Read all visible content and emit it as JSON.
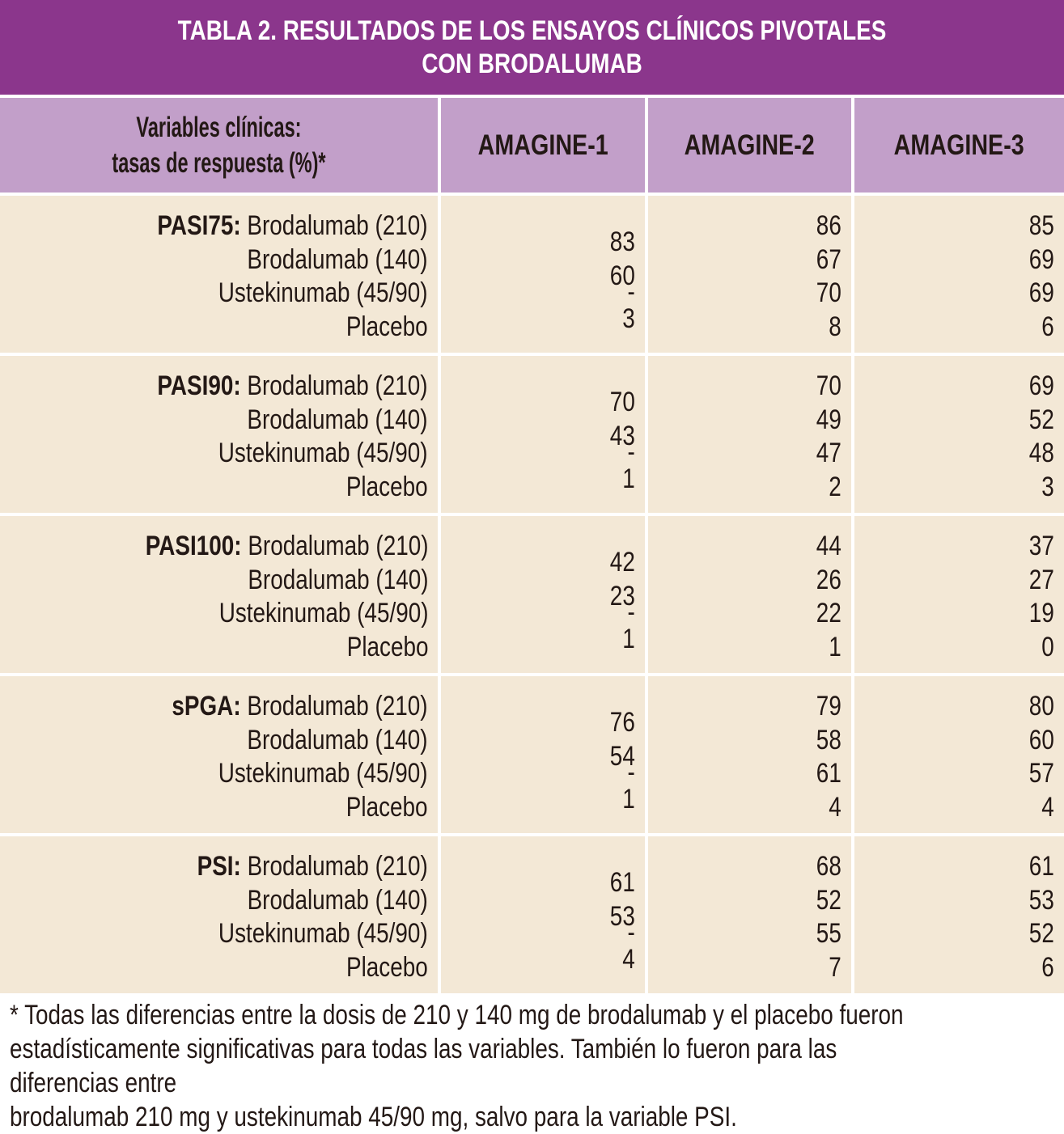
{
  "table": {
    "title_lines": [
      "TABLA 2. RESULTADOS DE LOS ENSAYOS CLÍNICOS PIVOTALES",
      "CON BRODALUMAB"
    ],
    "header": {
      "variables_label_lines": [
        "Variables clínicas:",
        "tasas de respuesta (%)*"
      ],
      "columns": [
        "AMAGINE-1",
        "AMAGINE-2",
        "AMAGINE-3"
      ]
    },
    "treatments": [
      "Brodalumab (210)",
      "Brodalumab (140)",
      "Ustekinumab (45/90)",
      "Placebo"
    ],
    "groups": [
      {
        "variable": "PASI75:",
        "amagine1": [
          "83",
          "60",
          "-",
          "3"
        ],
        "amagine2": [
          "86",
          "67",
          "70",
          "8"
        ],
        "amagine3": [
          "85",
          "69",
          "69",
          "6"
        ]
      },
      {
        "variable": "PASI90:",
        "amagine1": [
          "70",
          "43",
          "-",
          "1"
        ],
        "amagine2": [
          "70",
          "49",
          "47",
          "2"
        ],
        "amagine3": [
          "69",
          "52",
          "48",
          "3"
        ]
      },
      {
        "variable": "PASI100:",
        "amagine1": [
          "42",
          "23",
          "-",
          "1"
        ],
        "amagine2": [
          "44",
          "26",
          "22",
          "1"
        ],
        "amagine3": [
          "37",
          "27",
          "19",
          "0"
        ]
      },
      {
        "variable": "sPGA:",
        "amagine1": [
          "76",
          "54",
          "-",
          "1"
        ],
        "amagine2": [
          "79",
          "58",
          "61",
          "4"
        ],
        "amagine3": [
          "80",
          "60",
          "57",
          "4"
        ]
      },
      {
        "variable": "PSI:",
        "amagine1": [
          "61",
          "53",
          "-",
          "4"
        ],
        "amagine2": [
          "68",
          "52",
          "55",
          "7"
        ],
        "amagine3": [
          "61",
          "53",
          "52",
          "6"
        ]
      }
    ],
    "footnote_lines": [
      "* Todas las diferencias entre la dosis de 210 y 140 mg de brodalumab y el placebo fueron",
      "estadísticamente significativas para todas las variables. También lo fueron para las diferencias entre",
      "brodalumab 210 mg y ustekinumab 45/90 mg, salvo para la variable PSI."
    ],
    "colors": {
      "title_bg": "#8b368c",
      "header_bg": "#c29fc9",
      "body_bg": "#f3e8d6",
      "text": "#231815",
      "title_text": "#ffffff"
    }
  }
}
